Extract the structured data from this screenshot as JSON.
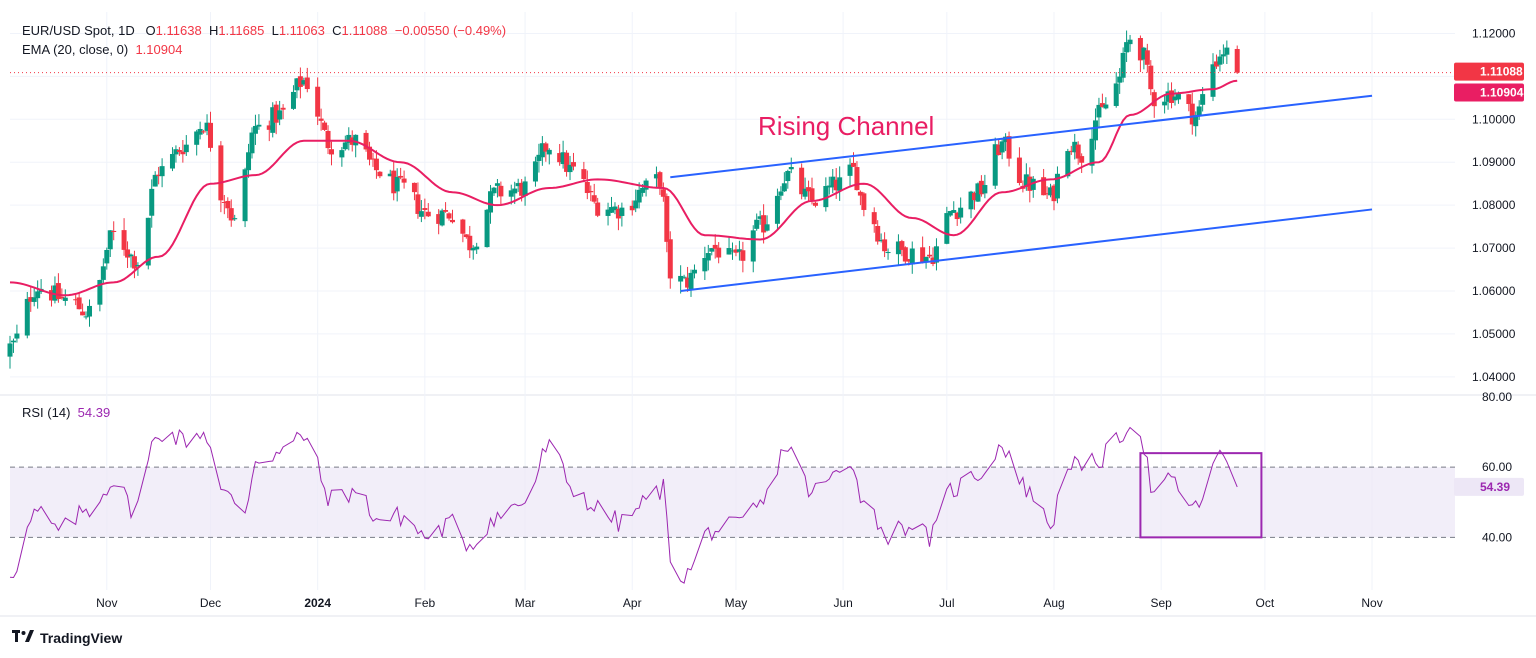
{
  "legend": {
    "symbol": "EUR/USD Spot, 1D",
    "open_label": "O",
    "open": "1.11638",
    "high_label": "H",
    "high": "1.11685",
    "low_label": "L",
    "low": "1.11063",
    "close_label": "C",
    "close": "1.11088",
    "change": "−0.00550 (−0.49%)",
    "ema_label": "EMA (20, close, 0)",
    "ema_value": "1.10904",
    "rsi_label": "RSI (14)",
    "rsi_value": "54.39"
  },
  "annotation": "Rising Channel",
  "branding": {
    "name": "TradingView",
    "logo_icon": "tradingview-logo-icon"
  },
  "colors": {
    "up": "#089981",
    "down": "#f23645",
    "ema": "#e91e63",
    "channel": "#2962ff",
    "rsi": "#9c27b0",
    "rsi_band": "#ede7f6",
    "price_badge": "#f23645",
    "ema_badge": "#e91e63",
    "rsi_badge": "#ede7f6"
  },
  "price_badges": {
    "close": "1.11088",
    "ema": "1.10904"
  },
  "rsi_badge": "54.39",
  "chart_data": [
    {
      "type": "candlestick",
      "title": "EUR/USD Spot, 1D",
      "y_ticks": [
        "1.12000",
        "1.11000",
        "1.10000",
        "1.09000",
        "1.08000",
        "1.07000",
        "1.06000",
        "1.05000",
        "1.04000"
      ],
      "y_tick_values": [
        1.12,
        1.11,
        1.1,
        1.09,
        1.08,
        1.07,
        1.06,
        1.05,
        1.04
      ],
      "ylim": [
        1.036,
        1.125
      ],
      "x_ticks": [
        {
          "label": "Nov",
          "date": "2023-11-01"
        },
        {
          "label": "Dec",
          "date": "2023-12-01"
        },
        {
          "label": "2024",
          "date": "2024-01-01",
          "bold": true
        },
        {
          "label": "Feb",
          "date": "2024-02-01"
        },
        {
          "label": "Mar",
          "date": "2024-03-01"
        },
        {
          "label": "Apr",
          "date": "2024-04-01"
        },
        {
          "label": "May",
          "date": "2024-05-01"
        },
        {
          "label": "Jun",
          "date": "2024-06-01"
        },
        {
          "label": "Jul",
          "date": "2024-07-01"
        },
        {
          "label": "Aug",
          "date": "2024-08-01"
        },
        {
          "label": "Sep",
          "date": "2024-09-01"
        },
        {
          "label": "Oct",
          "date": "2024-10-01"
        },
        {
          "label": "Nov",
          "date": "2024-11-01"
        }
      ],
      "xlim": [
        "2023-10-04",
        "2024-11-25"
      ],
      "close_series_anchors": [
        [
          "2023-10-04",
          1.047
        ],
        [
          "2023-10-12",
          1.061
        ],
        [
          "2023-10-20",
          1.058
        ],
        [
          "2023-10-27",
          1.055
        ],
        [
          "2023-11-03",
          1.073
        ],
        [
          "2023-11-10",
          1.067
        ],
        [
          "2023-11-16",
          1.088
        ],
        [
          "2023-11-24",
          1.094
        ],
        [
          "2023-11-29",
          1.099
        ],
        [
          "2023-12-05",
          1.082
        ],
        [
          "2023-12-08",
          1.076
        ],
        [
          "2023-12-14",
          1.098
        ],
        [
          "2023-12-21",
          1.101
        ],
        [
          "2023-12-28",
          1.109
        ],
        [
          "2024-01-05",
          1.094
        ],
        [
          "2024-01-12",
          1.095
        ],
        [
          "2024-01-18",
          1.088
        ],
        [
          "2024-01-25",
          1.084
        ],
        [
          "2024-02-02",
          1.078
        ],
        [
          "2024-02-09",
          1.078
        ],
        [
          "2024-02-14",
          1.071
        ],
        [
          "2024-02-22",
          1.083
        ],
        [
          "2024-03-01",
          1.084
        ],
        [
          "2024-03-08",
          1.094
        ],
        [
          "2024-03-15",
          1.088
        ],
        [
          "2024-03-22",
          1.08
        ],
        [
          "2024-03-29",
          1.079
        ],
        [
          "2024-04-05",
          1.084
        ],
        [
          "2024-04-09",
          1.086
        ],
        [
          "2024-04-12",
          1.064
        ],
        [
          "2024-04-16",
          1.062
        ],
        [
          "2024-04-24",
          1.07
        ],
        [
          "2024-05-01",
          1.067
        ],
        [
          "2024-05-08",
          1.075
        ],
        [
          "2024-05-16",
          1.087
        ],
        [
          "2024-05-23",
          1.081
        ],
        [
          "2024-05-31",
          1.085
        ],
        [
          "2024-06-04",
          1.088
        ],
        [
          "2024-06-07",
          1.08
        ],
        [
          "2024-06-14",
          1.07
        ],
        [
          "2024-06-21",
          1.069
        ],
        [
          "2024-06-26",
          1.068
        ],
        [
          "2024-07-03",
          1.079
        ],
        [
          "2024-07-10",
          1.083
        ],
        [
          "2024-07-17",
          1.094
        ],
        [
          "2024-07-24",
          1.085
        ],
        [
          "2024-07-31",
          1.082
        ],
        [
          "2024-08-05",
          1.095
        ],
        [
          "2024-08-09",
          1.092
        ],
        [
          "2024-08-14",
          1.101
        ],
        [
          "2024-08-19",
          1.108
        ],
        [
          "2024-08-23",
          1.119
        ],
        [
          "2024-08-26",
          1.116
        ],
        [
          "2024-08-30",
          1.105
        ],
        [
          "2024-09-04",
          1.106
        ],
        [
          "2024-09-11",
          1.101
        ],
        [
          "2024-09-16",
          1.113
        ],
        [
          "2024-09-19",
          1.116
        ],
        [
          "2024-09-23",
          1.111
        ]
      ],
      "ema_anchors": [
        [
          "2023-10-04",
          1.062
        ],
        [
          "2023-10-20",
          1.059
        ],
        [
          "2023-11-03",
          1.062
        ],
        [
          "2023-11-16",
          1.068
        ],
        [
          "2023-12-01",
          1.085
        ],
        [
          "2023-12-14",
          1.087
        ],
        [
          "2023-12-28",
          1.095
        ],
        [
          "2024-01-10",
          1.095
        ],
        [
          "2024-01-25",
          1.09
        ],
        [
          "2024-02-09",
          1.083
        ],
        [
          "2024-02-22",
          1.08
        ],
        [
          "2024-03-08",
          1.084
        ],
        [
          "2024-03-22",
          1.086
        ],
        [
          "2024-04-10",
          1.084
        ],
        [
          "2024-04-22",
          1.073
        ],
        [
          "2024-05-08",
          1.072
        ],
        [
          "2024-05-23",
          1.081
        ],
        [
          "2024-06-07",
          1.085
        ],
        [
          "2024-06-21",
          1.077
        ],
        [
          "2024-07-03",
          1.073
        ],
        [
          "2024-07-17",
          1.083
        ],
        [
          "2024-07-31",
          1.086
        ],
        [
          "2024-08-14",
          1.09
        ],
        [
          "2024-08-23",
          1.101
        ],
        [
          "2024-09-04",
          1.106
        ],
        [
          "2024-09-16",
          1.107
        ],
        [
          "2024-09-23",
          1.109
        ]
      ],
      "channel_lines": [
        {
          "start": [
            "2024-04-12",
            1.0865
          ],
          "end": [
            "2024-11-01",
            1.1055
          ]
        },
        {
          "start": [
            "2024-04-15",
            1.06
          ],
          "end": [
            "2024-11-01",
            1.079
          ]
        }
      ],
      "last_close": 1.11088,
      "ema_last": 1.10904
    },
    {
      "type": "line",
      "title": "RSI (14)",
      "y_ticks": [
        "80.00",
        "60.00",
        "40.00"
      ],
      "y_tick_values": [
        80,
        60,
        40
      ],
      "ylim": [
        25,
        80
      ],
      "band": [
        40,
        60
      ],
      "anchors": [
        [
          "2023-10-04",
          30
        ],
        [
          "2023-10-12",
          47
        ],
        [
          "2023-10-18",
          42
        ],
        [
          "2023-10-27",
          48
        ],
        [
          "2023-11-03",
          56
        ],
        [
          "2023-11-09",
          48
        ],
        [
          "2023-11-16",
          70
        ],
        [
          "2023-11-24",
          68
        ],
        [
          "2023-11-29",
          70
        ],
        [
          "2023-12-05",
          52
        ],
        [
          "2023-12-11",
          48
        ],
        [
          "2023-12-14",
          62
        ],
        [
          "2023-12-21",
          64
        ],
        [
          "2023-12-28",
          69
        ],
        [
          "2024-01-05",
          51
        ],
        [
          "2024-01-12",
          53
        ],
        [
          "2024-01-19",
          45
        ],
        [
          "2024-01-25",
          46
        ],
        [
          "2024-02-02",
          40
        ],
        [
          "2024-02-09",
          44
        ],
        [
          "2024-02-14",
          38
        ],
        [
          "2024-02-22",
          46
        ],
        [
          "2024-03-01",
          50
        ],
        [
          "2024-03-08",
          66
        ],
        [
          "2024-03-15",
          54
        ],
        [
          "2024-03-22",
          48
        ],
        [
          "2024-03-29",
          44
        ],
        [
          "2024-04-05",
          50
        ],
        [
          "2024-04-10",
          54
        ],
        [
          "2024-04-12",
          35
        ],
        [
          "2024-04-16",
          29
        ],
        [
          "2024-04-24",
          42
        ],
        [
          "2024-05-01",
          43
        ],
        [
          "2024-05-08",
          49
        ],
        [
          "2024-05-16",
          66
        ],
        [
          "2024-05-23",
          53
        ],
        [
          "2024-05-31",
          58
        ],
        [
          "2024-06-04",
          61
        ],
        [
          "2024-06-07",
          50
        ],
        [
          "2024-06-14",
          41
        ],
        [
          "2024-06-21",
          44
        ],
        [
          "2024-06-26",
          40
        ],
        [
          "2024-07-03",
          54
        ],
        [
          "2024-07-10",
          58
        ],
        [
          "2024-07-17",
          66
        ],
        [
          "2024-07-24",
          54
        ],
        [
          "2024-07-31",
          44
        ],
        [
          "2024-08-05",
          62
        ],
        [
          "2024-08-09",
          59
        ],
        [
          "2024-08-14",
          62
        ],
        [
          "2024-08-19",
          67
        ],
        [
          "2024-08-23",
          73
        ],
        [
          "2024-08-26",
          69
        ],
        [
          "2024-08-30",
          52
        ],
        [
          "2024-09-04",
          56
        ],
        [
          "2024-09-11",
          48
        ],
        [
          "2024-09-16",
          61
        ],
        [
          "2024-09-19",
          63
        ],
        [
          "2024-09-23",
          54.39
        ]
      ],
      "highlight_box": {
        "start": "2024-08-26",
        "end": "2024-09-30",
        "top": 64,
        "bottom": 40
      },
      "last_value": 54.39
    }
  ]
}
